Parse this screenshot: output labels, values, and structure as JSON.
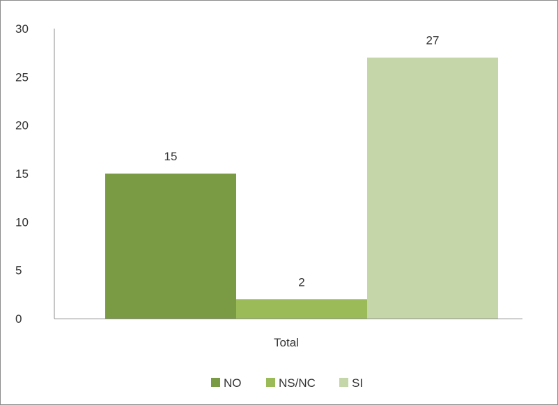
{
  "chart_data": {
    "type": "bar",
    "categories": [
      "Total"
    ],
    "series": [
      {
        "name": "NO",
        "values": [
          15
        ],
        "color": "#7a9a44"
      },
      {
        "name": "NS/NC",
        "values": [
          2
        ],
        "color": "#9bbb59"
      },
      {
        "name": "SI",
        "values": [
          27
        ],
        "color": "#c5d7a9"
      }
    ],
    "data_labels": [
      "15",
      "2",
      "27"
    ],
    "yticks": [
      "0",
      "5",
      "10",
      "15",
      "20",
      "25",
      "30"
    ],
    "ylim": [
      0,
      30
    ],
    "title": "",
    "xlabel": "",
    "ylabel": "",
    "grid": false,
    "legend_position": "bottom"
  }
}
